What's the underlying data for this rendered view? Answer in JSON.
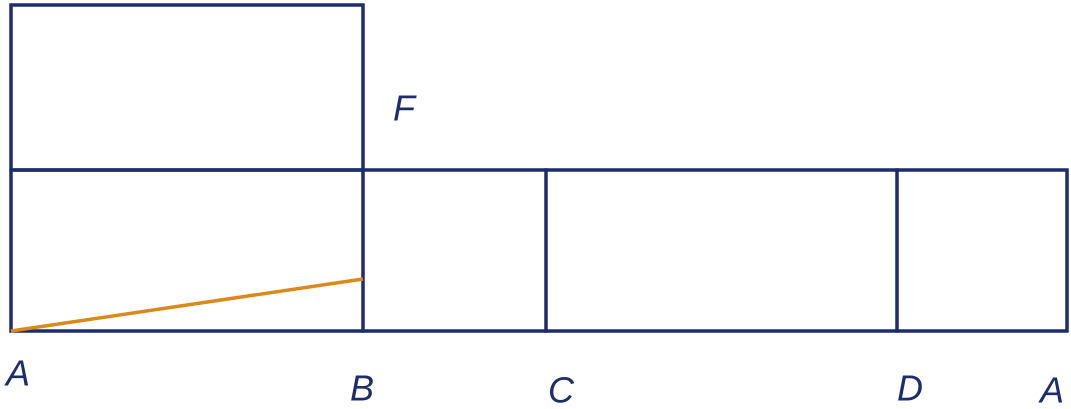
{
  "labels": [
    "A",
    "B",
    "C",
    "D",
    "A",
    "F"
  ]
}
